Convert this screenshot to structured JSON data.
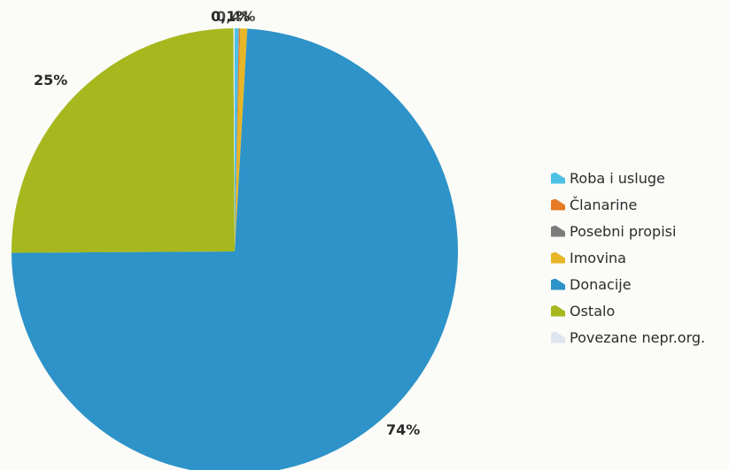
{
  "chart_data": {
    "type": "pie",
    "slices": [
      {
        "name": "Roba i usluge",
        "value": 0.3,
        "label": "",
        "color": "#4dc0e6"
      },
      {
        "name": "Članarine",
        "value": 0.1,
        "label": "",
        "color": "#e57b24"
      },
      {
        "name": "Posebni propisi",
        "value": 0.0,
        "label": "",
        "color": "#7c7c7c"
      },
      {
        "name": "Imovina",
        "value": 0.5,
        "label": "",
        "color": "#e6b626"
      },
      {
        "name": "Donacije",
        "value": 74.0,
        "label": "74%",
        "color": "#2d93c8"
      },
      {
        "name": "Ostalo",
        "value": 25.0,
        "label": "25%",
        "color": "#a6b81d"
      },
      {
        "name": "Povezane nepr.org.",
        "value": 0.1,
        "label": "",
        "color": "#dde6ee"
      }
    ],
    "top_labels": [
      "0,1%",
      "0,4%"
    ],
    "legend_position": "right"
  }
}
